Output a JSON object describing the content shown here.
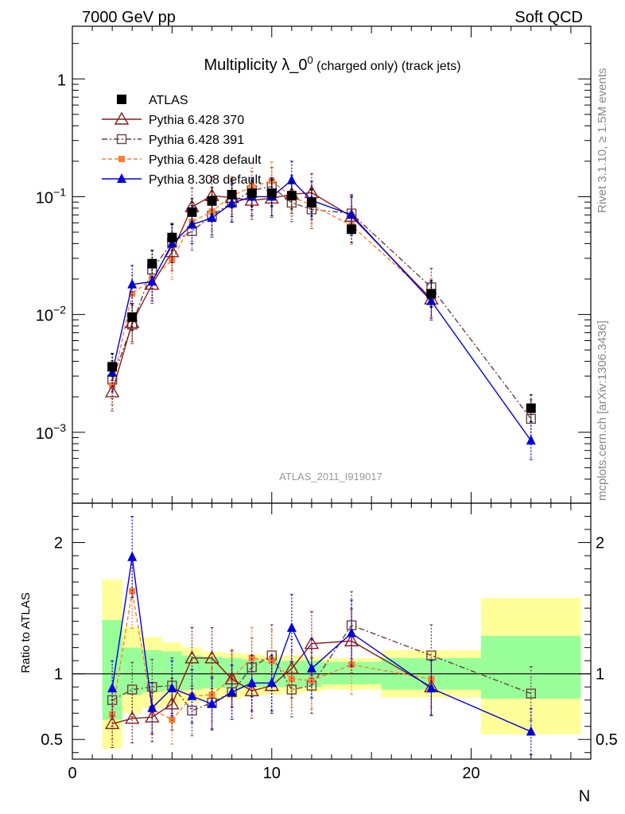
{
  "header": {
    "left": "7000 GeV pp",
    "right": "Soft QCD"
  },
  "side_labels": {
    "rivet": "Rivet 3.1.10, ≥ 1.5M events",
    "mcplots": "mcplots.cern.ch [arXiv:1306.3436]"
  },
  "plot_title": {
    "main": "Multiplicity λ_0",
    "sup": "0",
    "small": " (charged only) (track jets)"
  },
  "analysis_id": "ATLAS_2011_I919017",
  "colors": {
    "atlas": "#000000",
    "py370": "#8b1a1a",
    "py391": "#6b4040",
    "pydef": "#ff7f2a",
    "py8": "#0000dd",
    "band_yellow": "#ffff99",
    "band_green": "#99ff99"
  },
  "chart_data": [
    {
      "type": "scatter",
      "panel": "main",
      "ylabel": "",
      "yscale": "log",
      "xlim": [
        0,
        26
      ],
      "ylim": [
        0.00025,
        2.8
      ],
      "y_tick_labels": [
        "10^-3",
        "10^-2",
        "10^-1",
        "1"
      ],
      "legend_position": "top-left",
      "series": [
        {
          "name": "ATLAS",
          "key": "atlas",
          "x": [
            2,
            3,
            4,
            5,
            6,
            7,
            8,
            9,
            10,
            11,
            12,
            14,
            18,
            23
          ],
          "y": [
            0.0036,
            0.0095,
            0.027,
            0.045,
            0.074,
            0.092,
            0.104,
            0.107,
            0.107,
            0.102,
            0.089,
            0.053,
            0.015,
            0.0016
          ]
        },
        {
          "name": "Pythia 6.428 370",
          "key": "py370",
          "x": [
            2,
            3,
            4,
            5,
            6,
            7,
            8,
            9,
            10,
            11,
            12,
            14,
            18
          ],
          "y": [
            0.0022,
            0.0085,
            0.018,
            0.034,
            0.082,
            0.102,
            0.098,
            0.093,
            0.097,
            0.105,
            0.108,
            0.068,
            0.0135
          ]
        },
        {
          "name": "Pythia 6.428 391",
          "key": "py391",
          "x": [
            2,
            3,
            4,
            5,
            6,
            7,
            8,
            9,
            10,
            11,
            12,
            14,
            18,
            23
          ],
          "y": [
            0.0028,
            0.0082,
            0.024,
            0.041,
            0.051,
            0.069,
            0.089,
            0.113,
            0.122,
            0.089,
            0.078,
            0.072,
            0.017,
            0.0013
          ]
        },
        {
          "name": "Pythia 6.428 default",
          "key": "pydef",
          "x": [
            2,
            3,
            4,
            5,
            6,
            7,
            8,
            9,
            10,
            11,
            12,
            14,
            18
          ],
          "y": [
            0.0025,
            0.015,
            0.02,
            0.029,
            0.061,
            0.075,
            0.102,
            0.121,
            0.136,
            0.1,
            0.085,
            0.057,
            0.014
          ]
        },
        {
          "name": "Pythia 8.308 default",
          "key": "py8",
          "x": [
            2,
            3,
            4,
            5,
            6,
            7,
            8,
            9,
            10,
            11,
            12,
            14,
            18,
            23
          ],
          "y": [
            0.0032,
            0.018,
            0.019,
            0.04,
            0.058,
            0.066,
            0.088,
            0.1,
            0.1,
            0.138,
            0.093,
            0.07,
            0.013,
            0.00085
          ]
        }
      ]
    },
    {
      "type": "scatter",
      "panel": "ratio",
      "xlabel": "N",
      "ylabel": "Ratio to ATLAS",
      "xlim": [
        0,
        26
      ],
      "ylim": [
        0.35,
        2.3
      ],
      "x_ticks": [
        0,
        10,
        20
      ],
      "y_ticks": [
        0.5,
        1,
        2
      ],
      "reference_line": 1,
      "bands": {
        "x_edges": [
          1.5,
          2.5,
          3.5,
          4.5,
          5.5,
          6.5,
          7.5,
          8.5,
          9.5,
          10.5,
          11.5,
          12.5,
          15.5,
          20.5,
          25.5
        ],
        "green_low": [
          0.65,
          0.84,
          0.86,
          0.87,
          0.88,
          0.89,
          0.89,
          0.9,
          0.9,
          0.9,
          0.9,
          0.92,
          0.88,
          0.81
        ],
        "green_high": [
          1.41,
          1.2,
          1.18,
          1.17,
          1.14,
          1.13,
          1.12,
          1.11,
          1.1,
          1.1,
          1.1,
          1.09,
          1.12,
          1.29
        ],
        "yellow_low": [
          0.43,
          0.7,
          0.74,
          0.76,
          0.78,
          0.8,
          0.81,
          0.83,
          0.84,
          0.85,
          0.86,
          0.88,
          0.82,
          0.54
        ],
        "yellow_high": [
          1.72,
          1.36,
          1.28,
          1.24,
          1.2,
          1.17,
          1.16,
          1.15,
          1.14,
          1.14,
          1.13,
          1.12,
          1.18,
          1.58
        ]
      },
      "series": [
        {
          "name": "Pythia 6.428 370",
          "key": "py370",
          "x": [
            2,
            3,
            4,
            5,
            6,
            7,
            8,
            9,
            10,
            11,
            12,
            14,
            18
          ],
          "y": [
            0.62,
            0.66,
            0.67,
            0.77,
            1.12,
            1.12,
            0.96,
            0.87,
            0.91,
            1.04,
            1.23,
            1.25,
            0.9
          ]
        },
        {
          "name": "Pythia 6.428 391",
          "key": "py391",
          "x": [
            2,
            3,
            4,
            5,
            6,
            7,
            8,
            9,
            10,
            11,
            12,
            14,
            18,
            23
          ],
          "y": [
            0.8,
            0.88,
            0.9,
            0.91,
            0.72,
            0.78,
            0.86,
            1.05,
            1.14,
            0.88,
            0.91,
            1.37,
            1.14,
            0.85
          ]
        },
        {
          "name": "Pythia 6.428 default",
          "key": "pydef",
          "x": [
            2,
            3,
            4,
            5,
            6,
            7,
            8,
            9,
            10,
            11,
            12,
            14,
            18
          ],
          "y": [
            0.69,
            1.63,
            0.73,
            0.65,
            0.83,
            0.84,
            0.97,
            1.12,
            1.1,
            0.96,
            0.95,
            1.07,
            0.96
          ]
        },
        {
          "name": "Pythia 8.308 default",
          "key": "py8",
          "x": [
            2,
            3,
            4,
            5,
            6,
            7,
            8,
            9,
            10,
            11,
            12,
            14,
            18,
            23
          ],
          "y": [
            0.89,
            1.89,
            0.74,
            0.89,
            0.83,
            0.77,
            0.86,
            0.93,
            0.93,
            1.35,
            1.04,
            1.31,
            0.89,
            0.56
          ]
        }
      ]
    }
  ]
}
